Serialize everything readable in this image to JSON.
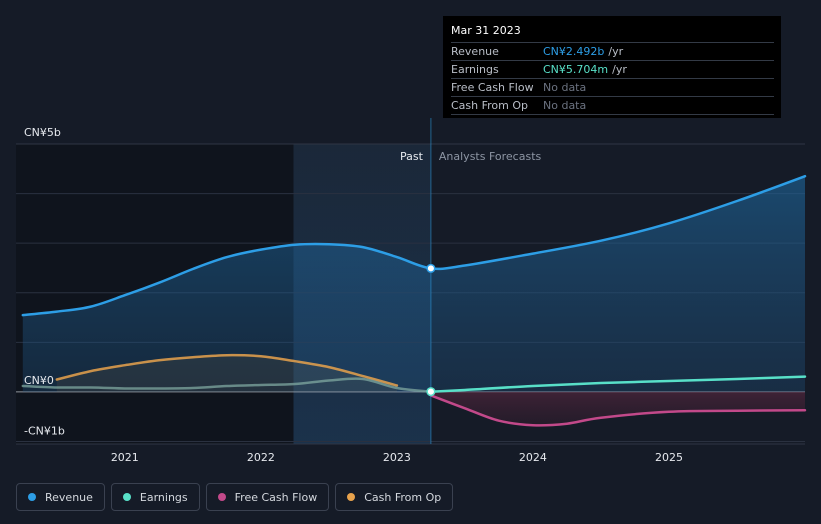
{
  "chart_data": {
    "type": "line",
    "title": "",
    "currency_unit": "CN¥",
    "x_range": [
      2020.2,
      2026.0
    ],
    "ylim": [
      -1.05,
      5.0
    ],
    "y_ticks": [
      {
        "value": 5,
        "label": "CN¥5b"
      },
      {
        "value": 0,
        "label": "CN¥0"
      },
      {
        "value": -1,
        "label": "-CN¥1b"
      }
    ],
    "x_ticks": [
      {
        "value": 2021,
        "label": "2021"
      },
      {
        "value": 2022,
        "label": "2022"
      },
      {
        "value": 2023,
        "label": "2023"
      },
      {
        "value": 2024,
        "label": "2024"
      },
      {
        "value": 2025,
        "label": "2025"
      }
    ],
    "past_label": "Past",
    "forecast_label": "Analysts Forecasts",
    "past_region_start": 2022.24,
    "divider_x": 2023.25,
    "series": [
      {
        "name": "Revenue",
        "color": "#2d9ee6",
        "past": [
          [
            2020.25,
            1.55
          ],
          [
            2020.5,
            1.62
          ],
          [
            2020.75,
            1.72
          ],
          [
            2021,
            1.95
          ],
          [
            2021.25,
            2.2
          ],
          [
            2021.5,
            2.48
          ],
          [
            2021.75,
            2.72
          ],
          [
            2022,
            2.87
          ],
          [
            2022.25,
            2.97
          ],
          [
            2022.5,
            2.98
          ],
          [
            2022.75,
            2.92
          ],
          [
            2023,
            2.72
          ],
          [
            2023.25,
            2.492
          ]
        ],
        "forecast": [
          [
            2023.25,
            2.492
          ],
          [
            2023.5,
            2.55
          ],
          [
            2024,
            2.79
          ],
          [
            2024.5,
            3.05
          ],
          [
            2025,
            3.4
          ],
          [
            2025.5,
            3.85
          ],
          [
            2026,
            4.35
          ]
        ]
      },
      {
        "name": "Earnings",
        "color": "#58e0c8",
        "past": [
          [
            2020.25,
            0.12
          ],
          [
            2020.5,
            0.09
          ],
          [
            2020.75,
            0.09
          ],
          [
            2021,
            0.07
          ],
          [
            2021.25,
            0.07
          ],
          [
            2021.5,
            0.08
          ],
          [
            2021.75,
            0.12
          ],
          [
            2022,
            0.14
          ],
          [
            2022.25,
            0.16
          ],
          [
            2022.5,
            0.23
          ],
          [
            2022.75,
            0.26
          ],
          [
            2023,
            0.08
          ],
          [
            2023.25,
            0.0057
          ]
        ],
        "forecast": [
          [
            2023.25,
            0.0057
          ],
          [
            2023.5,
            0.04
          ],
          [
            2024,
            0.12
          ],
          [
            2024.5,
            0.18
          ],
          [
            2025,
            0.22
          ],
          [
            2025.5,
            0.26
          ],
          [
            2026,
            0.31
          ]
        ]
      },
      {
        "name": "Free Cash Flow",
        "color": "#c2498a",
        "past": [],
        "forecast": [
          [
            2023.25,
            -0.07
          ],
          [
            2023.5,
            -0.33
          ],
          [
            2023.75,
            -0.58
          ],
          [
            2024,
            -0.67
          ],
          [
            2024.25,
            -0.64
          ],
          [
            2024.5,
            -0.52
          ],
          [
            2025,
            -0.4
          ],
          [
            2025.5,
            -0.38
          ],
          [
            2026,
            -0.37
          ]
        ]
      },
      {
        "name": "Cash From Op",
        "color": "#e8a24c",
        "past": [
          [
            2020.5,
            0.25
          ],
          [
            2020.75,
            0.42
          ],
          [
            2021,
            0.54
          ],
          [
            2021.25,
            0.64
          ],
          [
            2021.5,
            0.7
          ],
          [
            2021.75,
            0.74
          ],
          [
            2022,
            0.72
          ],
          [
            2022.25,
            0.62
          ],
          [
            2022.5,
            0.5
          ],
          [
            2022.75,
            0.32
          ],
          [
            2023,
            0.13
          ]
        ],
        "forecast": []
      }
    ]
  },
  "tooltip": {
    "date": "Mar 31 2023",
    "rows": [
      {
        "label": "Revenue",
        "value": "CN¥2.492b",
        "unit": "/yr"
      },
      {
        "label": "Earnings",
        "value": "CN¥5.704m",
        "unit": "/yr"
      },
      {
        "label": "Free Cash Flow",
        "value": "No data",
        "unit": ""
      },
      {
        "label": "Cash From Op",
        "value": "No data",
        "unit": ""
      }
    ]
  },
  "legend": [
    {
      "label": "Revenue",
      "color": "#2d9ee6"
    },
    {
      "label": "Earnings",
      "color": "#58e0c8"
    },
    {
      "label": "Free Cash Flow",
      "color": "#c2498a"
    },
    {
      "label": "Cash From Op",
      "color": "#e8a24c"
    }
  ]
}
